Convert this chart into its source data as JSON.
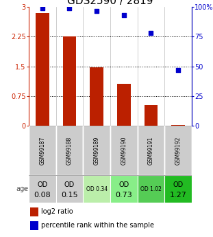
{
  "title": "GDS2590 / 2819",
  "samples": [
    "GSM99187",
    "GSM99188",
    "GSM99189",
    "GSM99190",
    "GSM99191",
    "GSM99192"
  ],
  "log2_ratio": [
    2.85,
    2.25,
    1.47,
    1.05,
    0.52,
    0.02
  ],
  "percentile_rank": [
    99,
    99,
    97,
    93,
    78,
    47
  ],
  "bar_color": "#bb2000",
  "dot_color": "#0000cc",
  "ylim_left": [
    0,
    3
  ],
  "ylim_right": [
    0,
    100
  ],
  "yticks_left": [
    0,
    0.75,
    1.5,
    2.25,
    3
  ],
  "yticks_right": [
    0,
    25,
    50,
    75,
    100
  ],
  "ytick_labels_left": [
    "0",
    "0.75",
    "1.5",
    "2.25",
    "3"
  ],
  "ytick_labels_right": [
    "0",
    "25",
    "50",
    "75",
    "100%"
  ],
  "annotation_od": [
    {
      "label_top": "OD",
      "label_bot": "0.08",
      "bg": "#cccccc",
      "small": false
    },
    {
      "label_top": "OD",
      "label_bot": "0.15",
      "bg": "#cccccc",
      "small": false
    },
    {
      "label_top": "OD",
      "label_bot": "0.34",
      "bg": "#bbeeaa",
      "small": true
    },
    {
      "label_top": "OD",
      "label_bot": "0.73",
      "bg": "#88ee88",
      "small": false
    },
    {
      "label_top": "OD",
      "label_bot": "1.02",
      "bg": "#55cc55",
      "small": true
    },
    {
      "label_top": "OD",
      "label_bot": "1.27",
      "bg": "#22bb22",
      "small": false
    }
  ],
  "age_label": "age",
  "legend_log2": "log2 ratio",
  "legend_pct": "percentile rank within the sample",
  "title_fontsize": 11,
  "left_axis_color": "#cc2200",
  "right_axis_color": "#0000cc",
  "sample_row_bg": "#cccccc"
}
